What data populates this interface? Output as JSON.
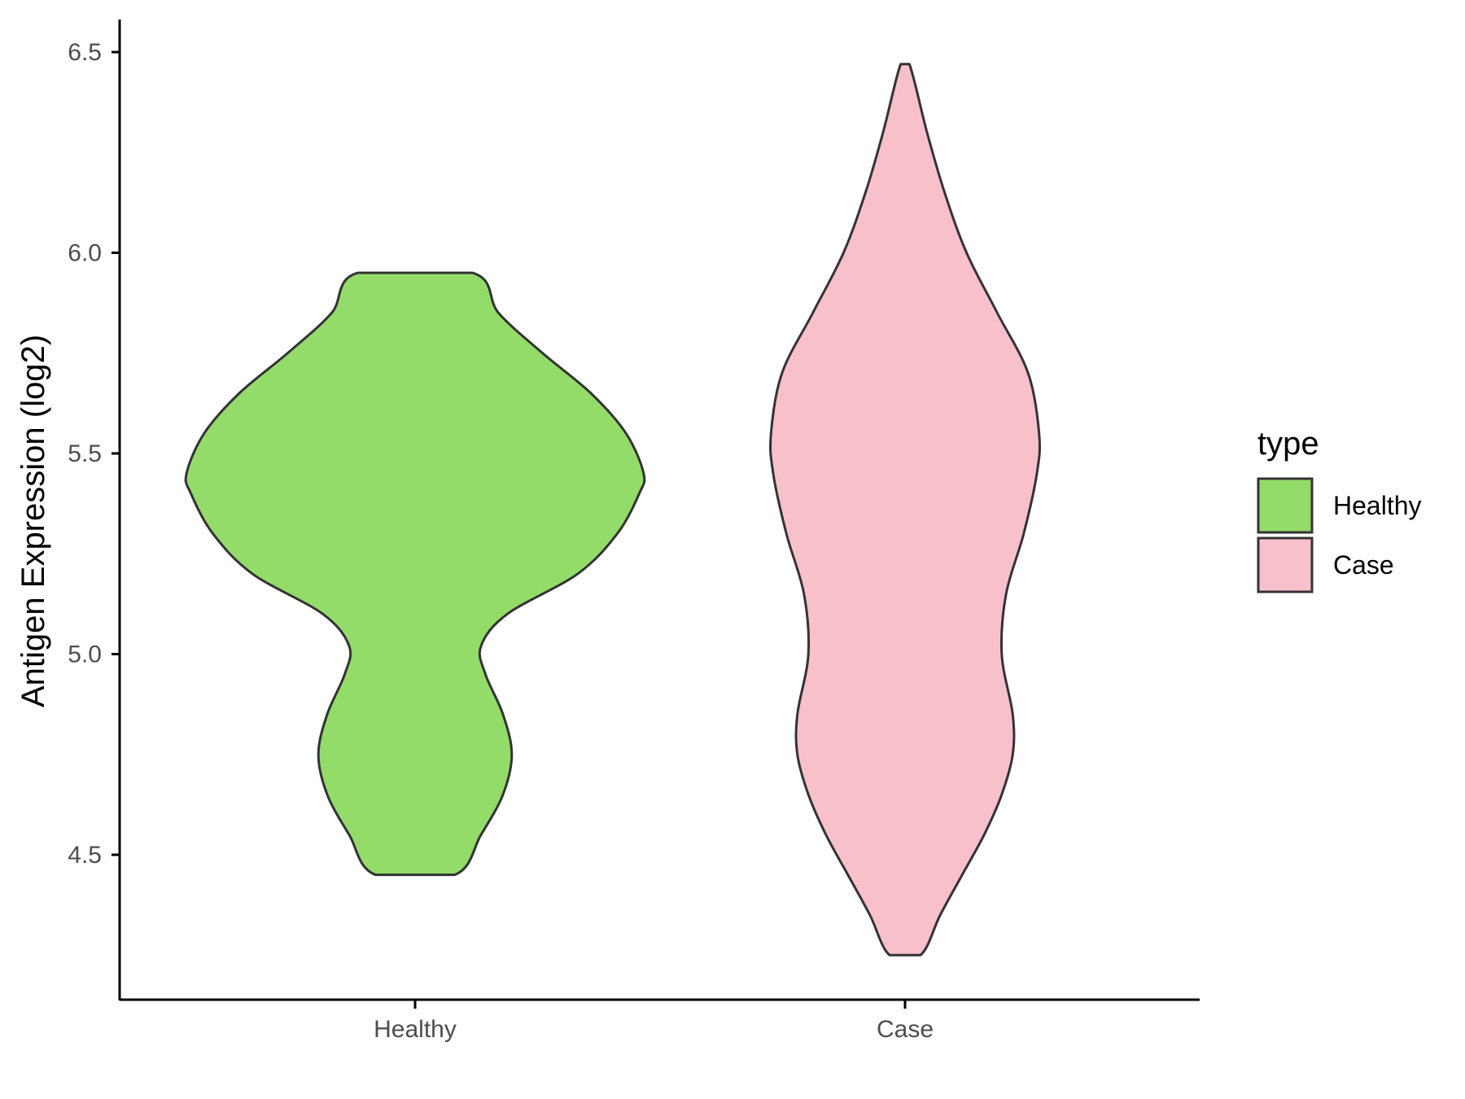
{
  "chart_data": {
    "type": "violin",
    "title": "",
    "xlabel": "",
    "ylabel": "Antigen Expression (log2)",
    "categories": [
      "Healthy",
      "Case"
    ],
    "y_ticks": [
      "4.5",
      "5.0",
      "5.5",
      "6.0",
      "6.5"
    ],
    "y_tick_values": [
      4.5,
      5.0,
      5.5,
      6.0,
      6.5
    ],
    "ylim": [
      4.13,
      6.58
    ],
    "grid": false,
    "legend": {
      "title": "type",
      "placement": "right",
      "entries": [
        {
          "label": "Healthy",
          "color": "#93dc6a"
        },
        {
          "label": "Case",
          "color": "#f8c0cb"
        }
      ]
    },
    "outline_color": "#333333",
    "series": [
      {
        "name": "Healthy",
        "color": "#93dc6a",
        "min": 4.45,
        "max": 5.95,
        "profile": [
          [
            4.45,
            0.09
          ],
          [
            4.55,
            0.15
          ],
          [
            4.65,
            0.2
          ],
          [
            4.75,
            0.22
          ],
          [
            4.85,
            0.2
          ],
          [
            4.95,
            0.16
          ],
          [
            5.02,
            0.15
          ],
          [
            5.1,
            0.21
          ],
          [
            5.2,
            0.37
          ],
          [
            5.3,
            0.46
          ],
          [
            5.4,
            0.51
          ],
          [
            5.45,
            0.52
          ],
          [
            5.55,
            0.48
          ],
          [
            5.65,
            0.4
          ],
          [
            5.75,
            0.29
          ],
          [
            5.85,
            0.19
          ],
          [
            5.95,
            0.13
          ]
        ]
      },
      {
        "name": "Case",
        "color": "#f8c0cb",
        "min": 4.25,
        "max": 6.47,
        "profile": [
          [
            4.25,
            0.035
          ],
          [
            4.35,
            0.08
          ],
          [
            4.45,
            0.13
          ],
          [
            4.55,
            0.18
          ],
          [
            4.65,
            0.22
          ],
          [
            4.75,
            0.245
          ],
          [
            4.85,
            0.245
          ],
          [
            5.0,
            0.22
          ],
          [
            5.15,
            0.23
          ],
          [
            5.3,
            0.27
          ],
          [
            5.45,
            0.3
          ],
          [
            5.55,
            0.305
          ],
          [
            5.7,
            0.28
          ],
          [
            5.85,
            0.21
          ],
          [
            6.0,
            0.14
          ],
          [
            6.15,
            0.09
          ],
          [
            6.3,
            0.05
          ],
          [
            6.47,
            0.01
          ]
        ]
      }
    ]
  }
}
